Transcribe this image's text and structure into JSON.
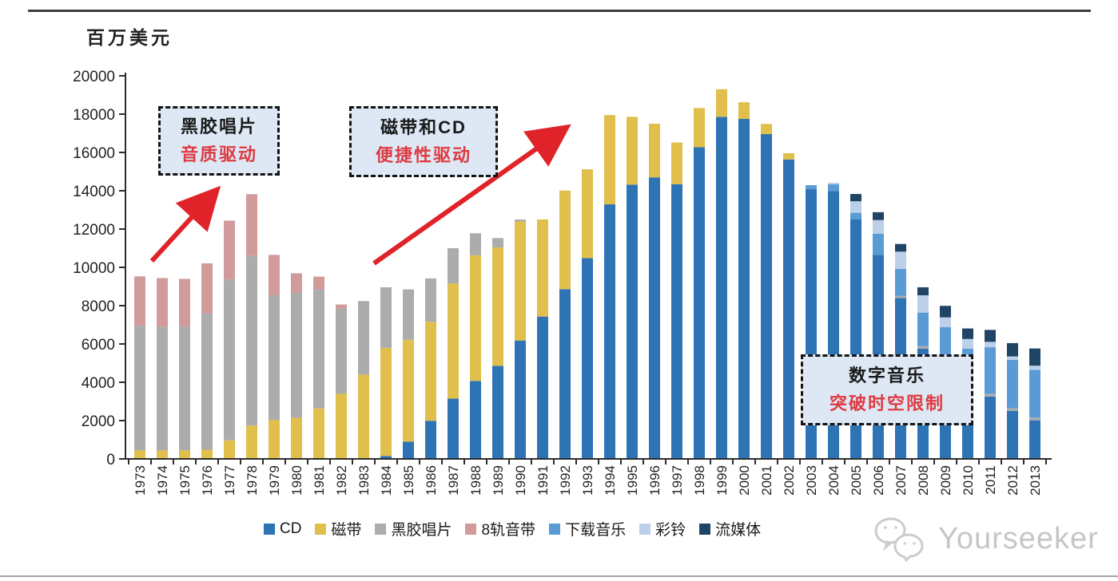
{
  "page": {
    "unit_label": "百万美元",
    "watermark": "Yourseeker"
  },
  "annotations": {
    "vinyl_era": {
      "line1": "黑胶唱片",
      "line2": "音质驱动"
    },
    "cd_era": {
      "line1": "磁带和CD",
      "line2": "便捷性驱动"
    },
    "digital_era": {
      "line1": "数字音乐",
      "line2": "突破时空限制"
    }
  },
  "chart_data": {
    "type": "bar",
    "stacked": true,
    "title": "",
    "ylabel": "百万美元",
    "xlabel": "",
    "ylim": [
      0,
      20000
    ],
    "ytick_step": 2000,
    "grid": false,
    "legend_position": "bottom-center",
    "accent_arrow_color": "#e02329",
    "categories": [
      1973,
      1974,
      1975,
      1976,
      1977,
      1978,
      1979,
      1980,
      1981,
      1982,
      1983,
      1984,
      1985,
      1986,
      1987,
      1988,
      1989,
      1990,
      1991,
      1992,
      1993,
      1994,
      1995,
      1996,
      1997,
      1998,
      1999,
      2000,
      2001,
      2002,
      2003,
      2004,
      2005,
      2006,
      2007,
      2008,
      2009,
      2010,
      2011,
      2012,
      2013
    ],
    "series": [
      {
        "name": "CD",
        "color": "#2E74B5",
        "values": [
          0,
          0,
          0,
          0,
          0,
          0,
          0,
          0,
          0,
          0,
          0,
          150,
          900,
          1990,
          3150,
          4070,
          4860,
          6180,
          7430,
          8860,
          10480,
          13290,
          14320,
          14700,
          14340,
          16270,
          17860,
          17750,
          16960,
          15630,
          14080,
          13990,
          12500,
          10650,
          8400,
          5750,
          4550,
          3550,
          3260,
          2500,
          2015
        ]
      },
      {
        "name": "磁带",
        "color": "#E0BF4D",
        "values": [
          450,
          450,
          450,
          480,
          970,
          1740,
          2040,
          2150,
          2640,
          3400,
          4400,
          5650,
          5320,
          5170,
          6010,
          6560,
          6180,
          6220,
          5070,
          5150,
          4640,
          4660,
          3540,
          2800,
          2180,
          2050,
          1440,
          870,
          530,
          330,
          0,
          0,
          0,
          0,
          0,
          0,
          0,
          0,
          0,
          0,
          0
        ]
      },
      {
        "name": "黑胶唱片",
        "color": "#ACACAC",
        "values": [
          6500,
          6460,
          6460,
          7090,
          8400,
          8860,
          6500,
          6530,
          6180,
          4450,
          3840,
          3160,
          2630,
          2260,
          1840,
          1150,
          490,
          100,
          0,
          0,
          0,
          0,
          0,
          0,
          0,
          0,
          0,
          0,
          0,
          0,
          0,
          0,
          0,
          0,
          120,
          130,
          100,
          60,
          140,
          140,
          140
        ]
      },
      {
        "name": "8轨音带",
        "color": "#D29B9B",
        "values": [
          2580,
          2530,
          2490,
          2640,
          3070,
          3220,
          2110,
          1010,
          695,
          210,
          0,
          0,
          0,
          0,
          0,
          0,
          0,
          0,
          0,
          0,
          0,
          0,
          0,
          0,
          0,
          0,
          0,
          0,
          0,
          0,
          0,
          0,
          0,
          0,
          0,
          0,
          0,
          0,
          0,
          0,
          0
        ]
      },
      {
        "name": "下载音乐",
        "color": "#5B9BD5",
        "values": [
          0,
          0,
          0,
          0,
          0,
          0,
          0,
          0,
          0,
          0,
          0,
          0,
          0,
          0,
          0,
          0,
          0,
          0,
          0,
          0,
          0,
          0,
          0,
          0,
          0,
          0,
          0,
          0,
          0,
          0,
          210,
          350,
          350,
          1100,
          1400,
          1760,
          2225,
          2150,
          2430,
          2530,
          2500
        ]
      },
      {
        "name": "彩铃",
        "color": "#BDD0E9",
        "values": [
          0,
          0,
          0,
          0,
          0,
          0,
          0,
          0,
          0,
          0,
          0,
          0,
          0,
          0,
          0,
          0,
          0,
          0,
          0,
          0,
          0,
          0,
          0,
          0,
          0,
          0,
          0,
          0,
          0,
          0,
          0,
          80,
          600,
          720,
          900,
          900,
          515,
          500,
          280,
          180,
          210
        ]
      },
      {
        "name": "流媒体",
        "color": "#1F4466",
        "values": [
          0,
          0,
          0,
          0,
          0,
          0,
          0,
          0,
          0,
          0,
          0,
          0,
          0,
          0,
          0,
          0,
          0,
          0,
          0,
          0,
          0,
          0,
          0,
          0,
          0,
          0,
          0,
          0,
          0,
          0,
          0,
          0,
          380,
          410,
          400,
          420,
          600,
          550,
          625,
          695,
          900
        ]
      }
    ]
  }
}
